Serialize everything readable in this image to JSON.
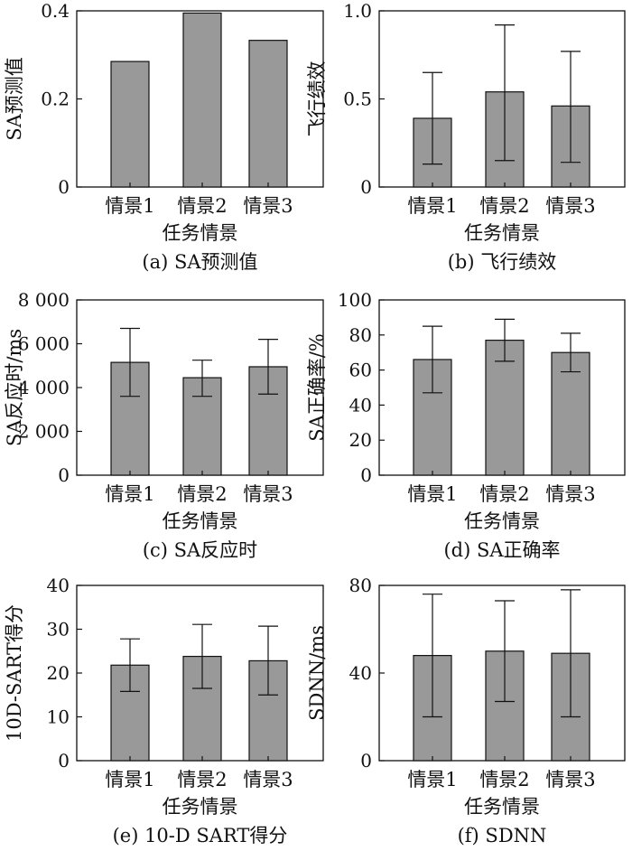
{
  "figure": {
    "bar_color": "#999999"
  },
  "chart_data": [
    {
      "id": "a",
      "type": "bar",
      "caption": "(a) SA预测值",
      "xlabel": "任务情景",
      "ylabel": "SA预测值",
      "categories": [
        "情景1",
        "情景2",
        "情景3"
      ],
      "values": [
        0.285,
        0.395,
        0.333
      ],
      "ylim": [
        0,
        0.4
      ],
      "yticks": [
        0,
        0.2,
        0.4
      ],
      "ytick_labels": [
        "0",
        "0.2",
        "0.4"
      ]
    },
    {
      "id": "b",
      "type": "bar",
      "caption": "(b) 飞行绩效",
      "xlabel": "任务情景",
      "ylabel": "飞行绩效",
      "categories": [
        "情景1",
        "情景2",
        "情景3"
      ],
      "values": [
        0.39,
        0.54,
        0.46
      ],
      "error_low": [
        0.13,
        0.15,
        0.14
      ],
      "error_high": [
        0.65,
        0.92,
        0.77
      ],
      "ylim": [
        0,
        1.0
      ],
      "yticks": [
        0,
        0.5,
        1.0
      ],
      "ytick_labels": [
        "0",
        "0.5",
        "1.0"
      ]
    },
    {
      "id": "c",
      "type": "bar",
      "caption": "(c) SA反应时",
      "xlabel": "任务情景",
      "ylabel": "SA反应时/ms",
      "categories": [
        "情景1",
        "情景2",
        "情景3"
      ],
      "values": [
        5150,
        4450,
        4950
      ],
      "error_low": [
        3600,
        3600,
        3700
      ],
      "error_high": [
        6700,
        5250,
        6200
      ],
      "ylim": [
        0,
        8000
      ],
      "yticks": [
        0,
        2000,
        4000,
        6000,
        8000
      ],
      "ytick_labels": [
        "0",
        "2 000",
        "4 000",
        "6 000",
        "8 000"
      ]
    },
    {
      "id": "d",
      "type": "bar",
      "caption": "(d) SA正确率",
      "xlabel": "任务情景",
      "ylabel": "SA正确率/%",
      "categories": [
        "情景1",
        "情景2",
        "情景3"
      ],
      "values": [
        66,
        77,
        70
      ],
      "error_low": [
        47,
        65,
        59
      ],
      "error_high": [
        85,
        89,
        81
      ],
      "ylim": [
        0,
        100
      ],
      "yticks": [
        0,
        20,
        40,
        60,
        80,
        100
      ],
      "ytick_labels": [
        "0",
        "20",
        "40",
        "60",
        "80",
        "100"
      ]
    },
    {
      "id": "e",
      "type": "bar",
      "caption": "(e) 10-D SART得分",
      "xlabel": "任务情景",
      "ylabel": "10D-SART得分",
      "categories": [
        "情景1",
        "情景2",
        "情景3"
      ],
      "values": [
        21.8,
        23.8,
        22.8
      ],
      "error_low": [
        15.8,
        16.5,
        15.0
      ],
      "error_high": [
        27.8,
        31.1,
        30.7
      ],
      "ylim": [
        0,
        40
      ],
      "yticks": [
        0,
        10,
        20,
        30,
        40
      ],
      "ytick_labels": [
        "0",
        "10",
        "20",
        "30",
        "40"
      ]
    },
    {
      "id": "f",
      "type": "bar",
      "caption": "(f) SDNN",
      "xlabel": "任务情景",
      "ylabel": "SDNN/ms",
      "categories": [
        "情景1",
        "情景2",
        "情景3"
      ],
      "values": [
        48,
        50,
        49
      ],
      "error_low": [
        20,
        27,
        20
      ],
      "error_high": [
        76,
        73,
        78
      ],
      "ylim": [
        0,
        80
      ],
      "yticks": [
        0,
        40,
        80
      ],
      "ytick_labels": [
        "0",
        "40",
        "80"
      ]
    }
  ]
}
